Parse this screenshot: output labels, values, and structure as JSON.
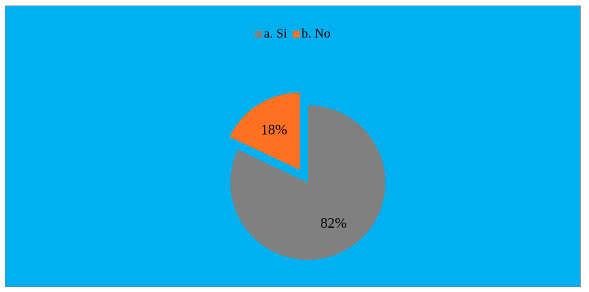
{
  "chart_data": {
    "type": "pie",
    "categories": [
      "a. Si",
      "b. No"
    ],
    "values": [
      82,
      18
    ],
    "labels": [
      "82%",
      "18%"
    ],
    "colors": [
      "#808080",
      "#ff7020"
    ],
    "exploded": [
      false,
      true
    ],
    "background": "#00b0f0",
    "legend_position": "top"
  }
}
